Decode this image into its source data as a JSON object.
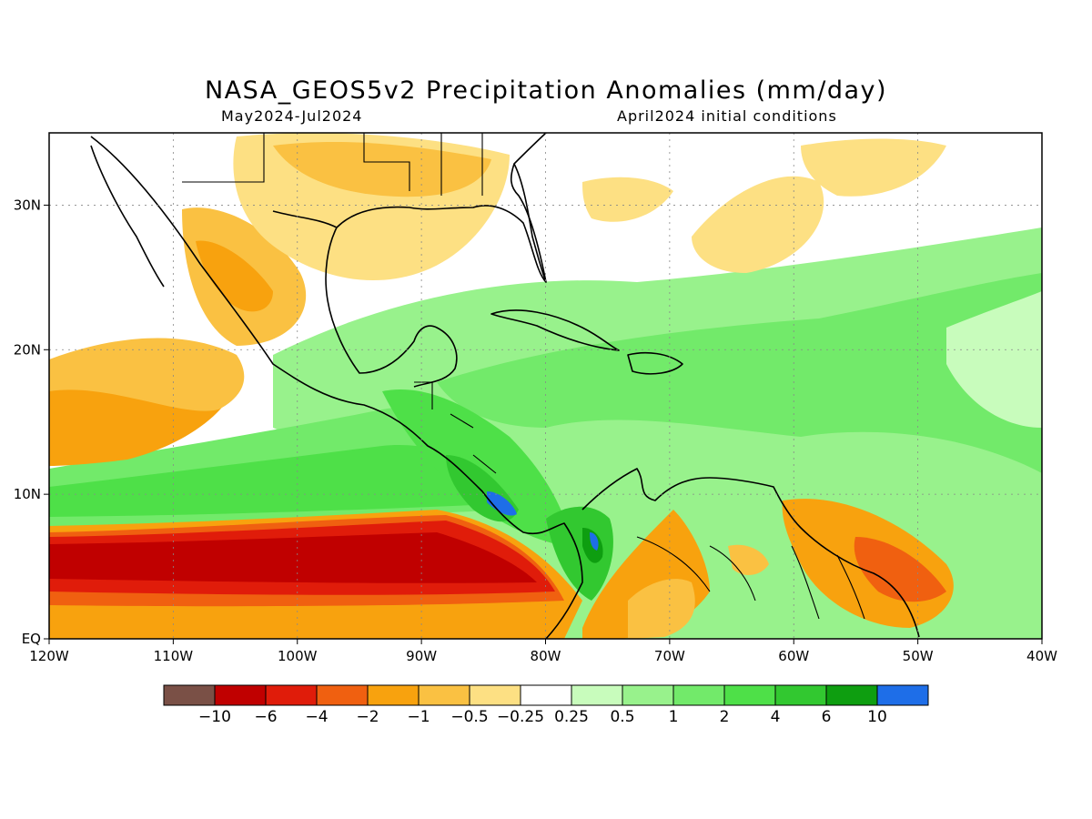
{
  "title": "NASA_GEOS5v2 Precipitation Anomalies (mm/day)",
  "subtitle_left": "May2024-Jul2024",
  "subtitle_right": "April2024 initial conditions",
  "map": {
    "lon_range": [
      -120,
      -40
    ],
    "lat_range": [
      0,
      35
    ],
    "grid": true,
    "x_ticks": [
      {
        "lon": -120,
        "label": "120W"
      },
      {
        "lon": -110,
        "label": "110W"
      },
      {
        "lon": -100,
        "label": "100W"
      },
      {
        "lon": -90,
        "label": "90W"
      },
      {
        "lon": -80,
        "label": "80W"
      },
      {
        "lon": -70,
        "label": "70W"
      },
      {
        "lon": -60,
        "label": "60W"
      },
      {
        "lon": -50,
        "label": "50W"
      },
      {
        "lon": -40,
        "label": "40W"
      }
    ],
    "y_ticks": [
      {
        "lat": 0,
        "label": "EQ"
      },
      {
        "lat": 10,
        "label": "10N"
      },
      {
        "lat": 20,
        "label": "20N"
      },
      {
        "lat": 30,
        "label": "30N"
      }
    ]
  },
  "colorbar": {
    "colors": [
      "#7a5046",
      "#c00000",
      "#e01c0a",
      "#f06010",
      "#f8a20e",
      "#fac142",
      "#fde083",
      "#ffffff",
      "#c8fcbc",
      "#98f28c",
      "#72ea6a",
      "#4ee048",
      "#32c830",
      "#0e9e10",
      "#1e6ee8"
    ],
    "labels": [
      "-10",
      "-6",
      "-4",
      "-2",
      "-1",
      "-0.5",
      "-0.25",
      "0.25",
      "0.5",
      "1",
      "2",
      "4",
      "6",
      "10"
    ]
  },
  "palette": {
    "deep_red": "#c00000",
    "red": "#e01c0a",
    "orange_red": "#f06010",
    "orange": "#f8a20e",
    "light_orange": "#fac142",
    "yellow": "#fde083",
    "pale_green": "#c8fcbc",
    "light_green": "#98f28c",
    "green": "#72ea6a",
    "bright_green": "#4ee048",
    "mid_green": "#32c830",
    "dark_green": "#0e9e10",
    "blue": "#1e6ee8"
  }
}
